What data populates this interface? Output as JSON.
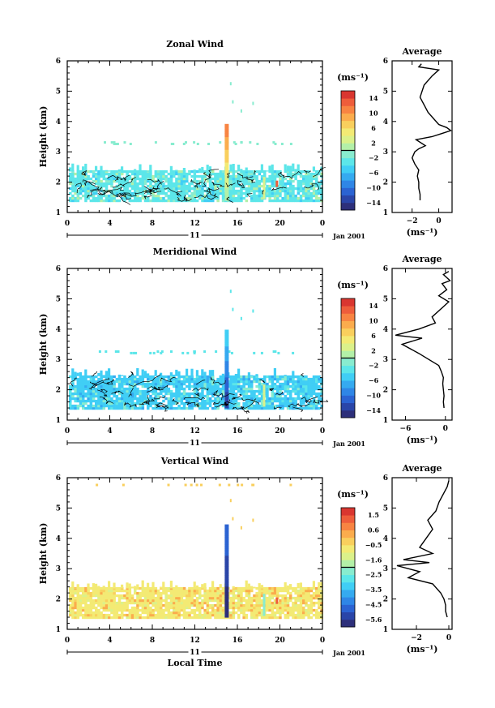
{
  "colormap": [
    "#2d2f7a",
    "#2a45a8",
    "#2b63d2",
    "#2f86e6",
    "#35aaf0",
    "#40cef5",
    "#5ce6e9",
    "#88eccf",
    "#b3f0a8",
    "#dbf18a",
    "#f3ea74",
    "#f9cf5d",
    "#fbac4d",
    "#f88442",
    "#ee5d3b",
    "#d93630"
  ],
  "panels": [
    {
      "title": "Zonal Wind",
      "ylabel": "Height (km)",
      "units": "(ms⁻¹)",
      "avg_title": "Average",
      "date_label": "11",
      "month_label": "Jan 2001",
      "time_ticks": [
        "0",
        "4",
        "8",
        "12",
        "16",
        "20",
        "0"
      ],
      "height_ticks": [
        "1",
        "2",
        "3",
        "4",
        "5",
        "6"
      ],
      "cbar_labels": [
        "14",
        "10",
        "6",
        "2",
        "−2",
        "−6",
        "−10",
        "−14"
      ],
      "avg_xticks": [
        "−2",
        "0"
      ],
      "avg_xlabel": "(ms⁻¹)",
      "dominant_colors": [
        6,
        7,
        5,
        8
      ],
      "spike_colors": [
        8,
        9,
        10,
        11,
        12,
        13
      ],
      "top_cut": 2.35,
      "sparse_rows": [
        3.35,
        3.3
      ],
      "contour": true
    },
    {
      "title": "Meridional Wind",
      "ylabel": "Height (km)",
      "units": "(ms⁻¹)",
      "avg_title": "Average",
      "date_label": "11",
      "month_label": "Jan 2001",
      "time_ticks": [
        "0",
        "4",
        "8",
        "12",
        "16",
        "20",
        "0"
      ],
      "height_ticks": [
        "1",
        "2",
        "3",
        "4",
        "5",
        "6"
      ],
      "cbar_labels": [
        "14",
        "10",
        "6",
        "2",
        "−2",
        "−6",
        "−10",
        "−14"
      ],
      "avg_xticks": [
        "−6",
        "0"
      ],
      "avg_xlabel": "(ms⁻¹)",
      "dominant_colors": [
        5,
        6,
        4,
        7
      ],
      "spike_colors": [
        1,
        2,
        3,
        4,
        5
      ],
      "top_cut": 2.45,
      "sparse_rows": [
        3.3,
        3.25
      ],
      "contour": true
    },
    {
      "title": "Vertical Wind",
      "ylabel": "Height (km)",
      "units": "(ms⁻¹)",
      "avg_title": "Average",
      "date_label": "11",
      "month_label": "Jan 2001",
      "xlabel": "Local Time",
      "time_ticks": [
        "0",
        "4",
        "8",
        "12",
        "16",
        "20",
        "0"
      ],
      "height_ticks": [
        "1",
        "2",
        "3",
        "4",
        "5",
        "6"
      ],
      "cbar_labels": [
        "1.5",
        "0.6",
        "−0.5",
        "−1.6",
        "−2.5",
        "−3.5",
        "−4.5",
        "−5.6"
      ],
      "avg_xticks": [
        "−2",
        "0"
      ],
      "avg_xlabel": "(ms⁻¹)",
      "dominant_colors": [
        10,
        11,
        9,
        12
      ],
      "spike_colors": [
        0,
        1,
        2
      ],
      "top_cut": 2.35,
      "sparse_rows": [
        5.8
      ],
      "contour": false
    }
  ],
  "chart_data": [
    {
      "type": "heatmap",
      "title": "Zonal Wind",
      "xlabel": "",
      "ylabel": "Height (km)",
      "xlim": [
        0,
        24
      ],
      "ylim": [
        1,
        6
      ],
      "colorbar": {
        "min": -14,
        "max": 14,
        "units": "(ms⁻¹)"
      },
      "average_profile": {
        "title": "Average",
        "xlabel": "(ms⁻¹)",
        "xlim": [
          -3.5,
          1
        ],
        "ylim": [
          1,
          6
        ],
        "x": [
          -1.4,
          -1.4,
          -1.5,
          -1.5,
          -1.6,
          -1.5,
          -1.8,
          -2.0,
          -1.8,
          -1.5,
          -1.0,
          -1.7,
          -0.5,
          0.2,
          0.9,
          0.6,
          0.0,
          -0.8,
          -1.4,
          -1.1,
          -0.5,
          0.0,
          -1.5,
          -1.3
        ],
        "y": [
          1.4,
          1.6,
          1.8,
          2.0,
          2.2,
          2.4,
          2.6,
          2.8,
          3.0,
          3.1,
          3.2,
          3.4,
          3.5,
          3.6,
          3.7,
          3.8,
          3.9,
          4.3,
          4.8,
          5.2,
          5.5,
          5.7,
          5.8,
          5.9
        ]
      }
    },
    {
      "type": "heatmap",
      "title": "Meridional Wind",
      "xlabel": "",
      "ylabel": "Height (km)",
      "xlim": [
        0,
        24
      ],
      "ylim": [
        1,
        6
      ],
      "colorbar": {
        "min": -14,
        "max": 14,
        "units": "(ms⁻¹)"
      },
      "average_profile": {
        "title": "Average",
        "xlabel": "(ms⁻¹)",
        "xlim": [
          -8,
          1
        ],
        "ylim": [
          1,
          6
        ],
        "x": [
          -0.2,
          -0.3,
          -0.2,
          -0.3,
          -0.4,
          -0.3,
          -0.6,
          -1.0,
          -2.5,
          -4.0,
          -6.5,
          -3.5,
          -7.5,
          -4.0,
          -1.5,
          -2.0,
          -0.5,
          0.5,
          -1.0,
          0.2,
          -0.5,
          0.7,
          -0.3,
          0.5
        ],
        "y": [
          1.4,
          1.6,
          1.8,
          2.0,
          2.2,
          2.4,
          2.6,
          2.8,
          3.0,
          3.2,
          3.5,
          3.7,
          3.8,
          4.0,
          4.2,
          4.4,
          4.7,
          4.9,
          5.1,
          5.3,
          5.5,
          5.6,
          5.8,
          5.9
        ]
      }
    },
    {
      "type": "heatmap",
      "title": "Vertical Wind",
      "xlabel": "Local Time",
      "ylabel": "Height (km)",
      "xlim": [
        0,
        24
      ],
      "ylim": [
        1,
        6
      ],
      "colorbar": {
        "min": -5.6,
        "max": 1.5,
        "units": "(ms⁻¹)"
      },
      "average_profile": {
        "title": "Average",
        "xlabel": "(ms⁻¹)",
        "xlim": [
          -3.5,
          0.2
        ],
        "ylim": [
          1,
          6
        ],
        "x": [
          -0.1,
          -0.2,
          -0.2,
          -0.3,
          -0.5,
          -1.0,
          -2.5,
          -1.8,
          -3.2,
          -1.2,
          -2.8,
          -1.0,
          -1.8,
          -1.4,
          -1.0,
          -1.3,
          -0.8,
          -0.6,
          -0.3,
          -0.1,
          0.0
        ],
        "y": [
          1.4,
          1.6,
          1.8,
          2.0,
          2.2,
          2.5,
          2.7,
          2.9,
          3.1,
          3.2,
          3.3,
          3.5,
          3.7,
          4.0,
          4.3,
          4.6,
          4.9,
          5.2,
          5.5,
          5.7,
          5.9
        ]
      }
    }
  ]
}
